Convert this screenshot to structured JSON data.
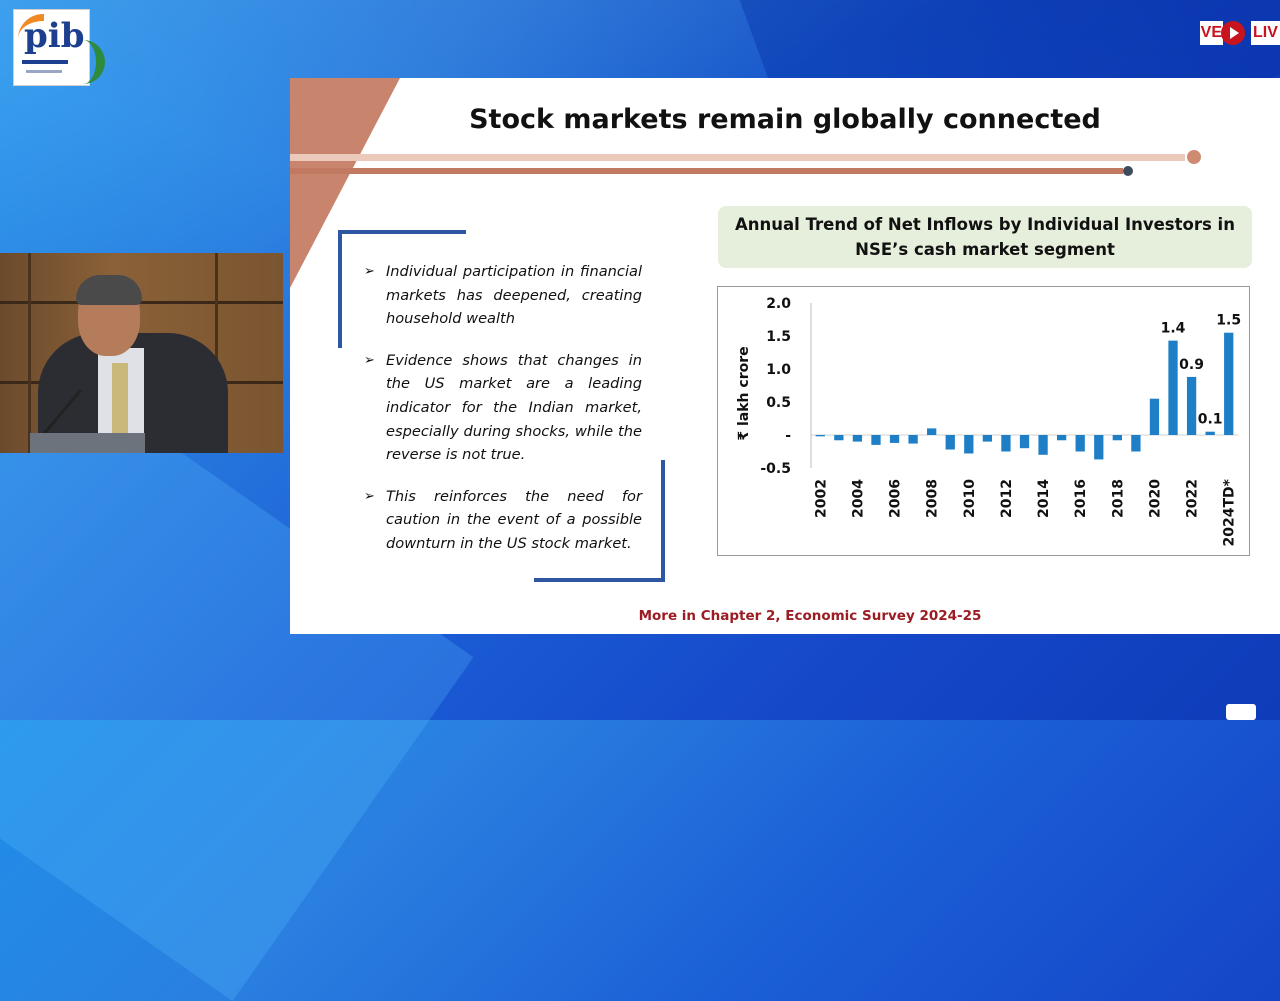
{
  "logo": {
    "text": "pib"
  },
  "live_badge": {
    "left": "VE",
    "right": "LIV"
  },
  "slide": {
    "title": "Stock markets remain globally connected",
    "bullets": [
      "Individual participation in financial markets has deepened, creating household wealth",
      "Evidence shows that changes in the US market are a leading indicator for the Indian market, especially during shocks, while the reverse is not true.",
      "This reinforces the need for caution in the event of a possible downturn in the US stock market."
    ],
    "footer": "More in Chapter 2, Economic Survey 2024-25",
    "chart_title_line1": "Annual Trend of Net Inflows by Individual Investors in",
    "chart_title_line2": "NSE’s cash market segment"
  },
  "chart_data": {
    "type": "bar",
    "ylabel": "₹ lakh crore",
    "ylim": [
      -0.5,
      2.0
    ],
    "yticks": [
      "2.0",
      "1.5",
      "1.0",
      "0.5",
      "-",
      "-0.5"
    ],
    "ytick_values": [
      2.0,
      1.5,
      1.0,
      0.5,
      0.0,
      -0.5
    ],
    "x_tick_labels": [
      "2002",
      "2004",
      "2006",
      "2008",
      "2010",
      "2012",
      "2014",
      "2016",
      "2018",
      "2020",
      "2022",
      "2024TD*"
    ],
    "categories": [
      "2002",
      "2003",
      "2004",
      "2005",
      "2006",
      "2007",
      "2008",
      "2009",
      "2010",
      "2011",
      "2012",
      "2013",
      "2014",
      "2015",
      "2016",
      "2017",
      "2018",
      "2019",
      "2020",
      "2021",
      "2022",
      "2023",
      "2024TD*"
    ],
    "values": [
      -0.02,
      -0.08,
      -0.1,
      -0.15,
      -0.12,
      -0.13,
      0.1,
      -0.22,
      -0.28,
      -0.1,
      -0.25,
      -0.2,
      -0.3,
      -0.08,
      -0.25,
      -0.37,
      -0.08,
      -0.25,
      0.55,
      1.43,
      0.88,
      0.05,
      1.55
    ],
    "data_labels": [
      {
        "category": "2021",
        "text": "1.4"
      },
      {
        "category": "2022",
        "text": "0.9"
      },
      {
        "category": "2023",
        "text": "0.1"
      },
      {
        "category": "2024TD*",
        "text": "1.5"
      }
    ],
    "bar_color": "#1f7fc6",
    "grid": false
  }
}
